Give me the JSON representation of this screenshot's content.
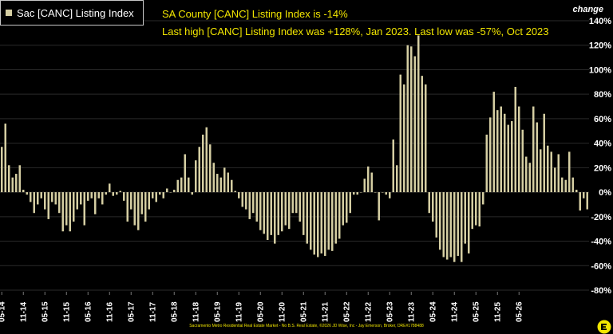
{
  "legend": {
    "label": "Sac [CANC] Listing Index"
  },
  "headline": {
    "line1": "SA County [CANC] Listing Index is -14%",
    "line2": "Last high [CANC] Listing Index was +128%, Jan 2023. Last low was -57%, Oct 2023"
  },
  "change_label": "change",
  "footer": "Sacramento Metro Residential Real Estate Market - No B.S. Real Estate, ©2026 JD Wise, Inc - Jay Emerson, Broker, DRE#1788488",
  "colors": {
    "bar": "#d6cfa3",
    "headline": "#f2e600",
    "background": "#000000",
    "grid": "#2a2a2a"
  },
  "logo_icon": "yellow-e-logo-icon",
  "chart_data": {
    "type": "bar",
    "title": "",
    "xlabel": "",
    "ylabel": "change",
    "ylim": [
      -80,
      140
    ],
    "y_ticks": [
      -80,
      -60,
      -40,
      -20,
      0,
      20,
      40,
      60,
      80,
      100,
      120,
      140
    ],
    "y_tick_labels": [
      "-80%",
      "-60%",
      "-40%",
      "-20%",
      "0%",
      "20%",
      "40%",
      "60%",
      "80%",
      "100%",
      "120%",
      "140%"
    ],
    "x_tick_labels": [
      "05-14",
      "11-14",
      "05-15",
      "11-15",
      "05-16",
      "11-16",
      "05-17",
      "11-17",
      "05-18",
      "11-18",
      "05-19",
      "11-19",
      "05-20",
      "11-20",
      "05-21",
      "11-21",
      "05-22",
      "11-22",
      "05-23",
      "11-23",
      "05-24",
      "11-24",
      "05-25",
      "11-25",
      "05-26"
    ],
    "x_tick_every": 6,
    "first_period": "2014-05",
    "series": [
      {
        "name": "Sac [CANC] Listing Index",
        "values": [
          37,
          56,
          22,
          12,
          15,
          22,
          2,
          -2,
          -8,
          -17,
          -10,
          -5,
          -14,
          -22,
          -8,
          -10,
          -17,
          -32,
          -27,
          -32,
          -24,
          -14,
          -10,
          -27,
          -7,
          -5,
          -18,
          -5,
          -10,
          -2,
          7,
          -3,
          -2,
          1,
          -7,
          -24,
          -14,
          -27,
          -31,
          -18,
          -24,
          -14,
          -5,
          -8,
          -2,
          -5,
          3,
          0,
          2,
          10,
          12,
          31,
          12,
          -2,
          26,
          37,
          47,
          53,
          39,
          24,
          15,
          12,
          20,
          16,
          10,
          1,
          -5,
          -12,
          -14,
          -22,
          -17,
          -24,
          -31,
          -34,
          -39,
          -35,
          -42,
          -35,
          -32,
          -27,
          -30,
          -17,
          -17,
          -24,
          -35,
          -42,
          -47,
          -51,
          -53,
          -50,
          -52,
          -47,
          -48,
          -42,
          -38,
          -27,
          -25,
          -17,
          -2,
          -2,
          0,
          11,
          21,
          16,
          0,
          -23,
          0,
          -2,
          -5,
          43,
          22,
          96,
          88,
          120,
          119,
          111,
          128,
          95,
          88,
          -17,
          -24,
          -37,
          -47,
          -53,
          -55,
          -53,
          -57,
          -52,
          -57,
          -42,
          -50,
          -30,
          -27,
          -28,
          -10,
          47,
          61,
          82,
          67,
          70,
          64,
          55,
          58,
          86,
          70,
          51,
          29,
          24,
          70,
          57,
          35,
          64,
          38,
          33,
          20,
          31,
          12,
          10,
          33,
          12,
          2,
          -15,
          -5,
          -14
        ]
      }
    ]
  }
}
